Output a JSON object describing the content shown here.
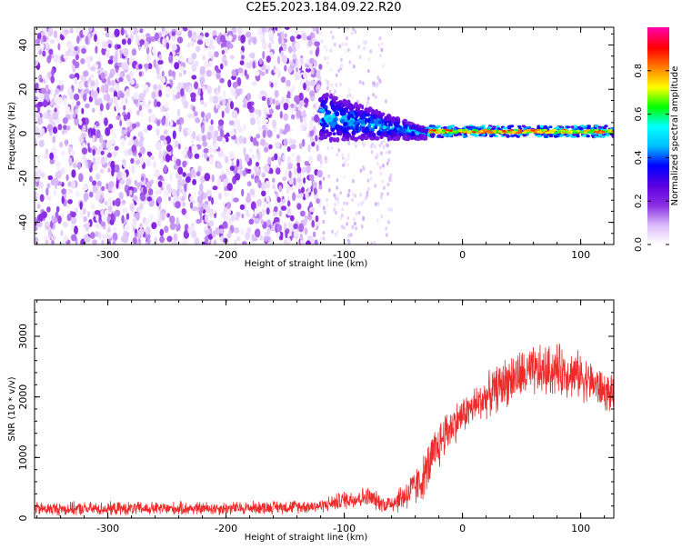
{
  "title": "C2E5.2023.184.09.22.R20",
  "chart_data": [
    {
      "type": "heatmap",
      "xlabel": "Height of straight line (km)",
      "ylabel": "Frequency (Hz)",
      "xlim": [
        -362,
        128
      ],
      "ylim": [
        -50,
        48
      ],
      "xticks": [
        -300,
        -200,
        -100,
        0,
        100
      ],
      "yticks": [
        -40,
        -20,
        0,
        20,
        40
      ],
      "colorbar": {
        "label": "Normalized spectral amplitude",
        "range": [
          0,
          1
        ],
        "ticks": [
          0.0,
          0.2,
          0.4,
          0.6,
          0.8
        ],
        "colors": [
          "#ffffff",
          "#d8b8f8",
          "#8a2be2",
          "#5a00e0",
          "#0000ff",
          "#00bfff",
          "#00ffff",
          "#00ff00",
          "#ffff00",
          "#ff8000",
          "#ff0000",
          "#ff00a0"
        ]
      },
      "description_series": [
        {
          "name": "noise region",
          "x_range": [
            -362,
            -120
          ],
          "freq_range": [
            -50,
            48
          ],
          "amplitude_range": [
            0.02,
            0.2
          ]
        },
        {
          "name": "meteor trail narrowing",
          "x_range": [
            -120,
            -30
          ],
          "freq_start": 8,
          "freq_end": 0,
          "amplitude_range": [
            0.2,
            0.55
          ]
        },
        {
          "name": "strong echo line",
          "x_range": [
            -30,
            128
          ],
          "freq": 1,
          "amplitude_range": [
            0.6,
            0.9
          ]
        }
      ]
    },
    {
      "type": "line",
      "xlabel": "Height of straight line (km)",
      "ylabel": "SNR (10 * v/v)",
      "xlim": [
        -362,
        128
      ],
      "ylim": [
        0,
        3600
      ],
      "xticks": [
        -300,
        -200,
        -100,
        0,
        100
      ],
      "yticks": [
        0,
        1000,
        2000,
        3000
      ],
      "color": "#ee2a2a",
      "envelope": {
        "x": [
          -362,
          -200,
          -120,
          -100,
          -80,
          -65,
          -55,
          -45,
          -35,
          -25,
          -15,
          0,
          20,
          40,
          60,
          80,
          100,
          128
        ],
        "mean": [
          150,
          160,
          200,
          300,
          350,
          220,
          300,
          420,
          600,
          1000,
          1400,
          1700,
          2000,
          2300,
          2400,
          2450,
          2350,
          2000
        ],
        "spread": [
          130,
          130,
          130,
          180,
          200,
          160,
          250,
          350,
          400,
          500,
          450,
          350,
          400,
          500,
          500,
          500,
          450,
          350
        ]
      }
    }
  ]
}
